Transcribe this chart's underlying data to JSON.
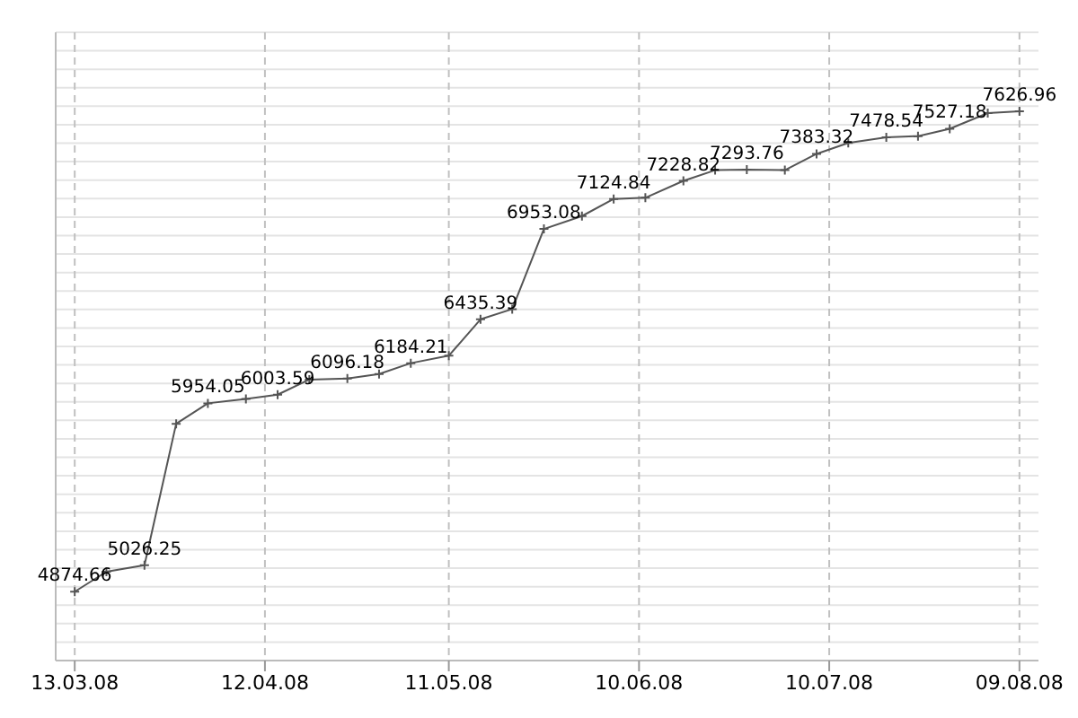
{
  "chart_data": {
    "type": "line",
    "x": [
      "2008-03-13",
      "2008-03-18",
      "2008-03-24",
      "2008-03-29",
      "2008-04-03",
      "2008-04-09",
      "2008-04-14",
      "2008-04-19",
      "2008-04-25",
      "2008-04-30",
      "2008-05-05",
      "2008-05-11",
      "2008-05-16",
      "2008-05-21",
      "2008-05-26",
      "2008-06-01",
      "2008-06-06",
      "2008-06-11",
      "2008-06-17",
      "2008-06-22",
      "2008-06-27",
      "2008-07-03",
      "2008-07-08",
      "2008-07-13",
      "2008-07-19",
      "2008-07-24",
      "2008-07-29",
      "2008-08-04",
      "2008-08-09"
    ],
    "series": [
      {
        "color": "#555555",
        "values": [
          4874.66,
          4989,
          5026.25,
          5837,
          5954.05,
          5979,
          6003.59,
          6090,
          6096.18,
          6122,
          6184.21,
          6227,
          6435.39,
          6494,
          6953.08,
          7027,
          7124.84,
          7132,
          7228.82,
          7290,
          7293.76,
          7290,
          7383.32,
          7446,
          7478.54,
          7485,
          7527.18,
          7617,
          7626.96
        ],
        "value_labels": [
          "4874.66",
          null,
          "5026.25",
          null,
          "5954.05",
          null,
          "6003.59",
          null,
          "6096.18",
          null,
          "6184.21",
          null,
          "6435.39",
          null,
          "6953.08",
          null,
          "7124.84",
          null,
          "7228.82",
          null,
          "7293.76",
          null,
          "7383.32",
          null,
          "7478.54",
          null,
          "7527.18",
          null,
          "7626.96"
        ]
      }
    ],
    "xlim": [
      "2008-03-10",
      "2008-08-12"
    ],
    "xticks": [
      {
        "value": "2008-03-13",
        "label": "13.03.08"
      },
      {
        "value": "2008-04-12",
        "label": "12.04.08"
      },
      {
        "value": "2008-05-11",
        "label": "11.05.08"
      },
      {
        "value": "2008-06-10",
        "label": "10.06.08"
      },
      {
        "value": "2008-07-10",
        "label": "10.07.08"
      },
      {
        "value": "2008-08-09",
        "label": "09.08.08"
      }
    ],
    "ylim": [
      4480,
      8080
    ],
    "tick_labels": "x",
    "grid": true,
    "legend": false,
    "marker": "cross",
    "line_style": "solid"
  }
}
